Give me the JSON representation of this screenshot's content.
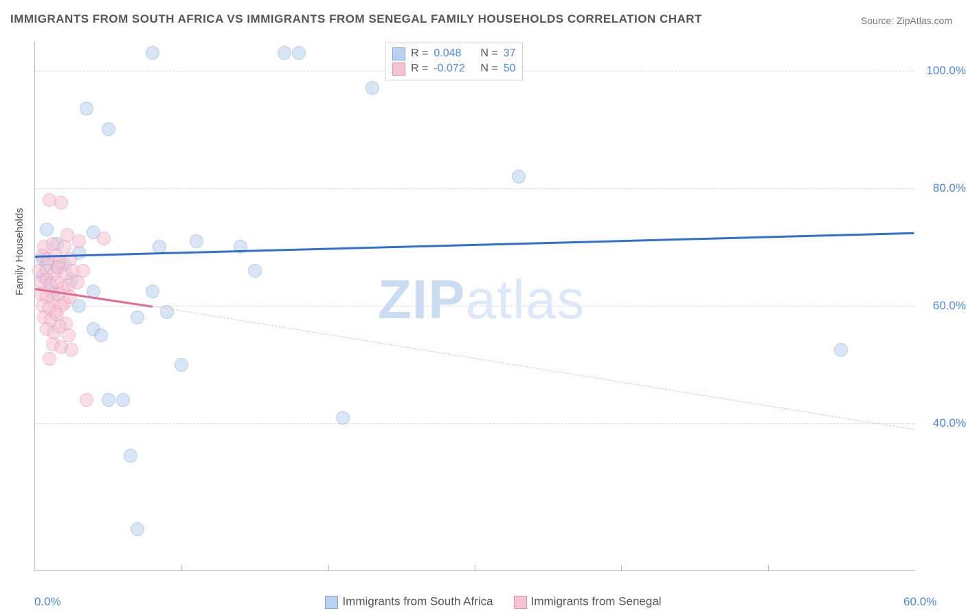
{
  "title": "IMMIGRANTS FROM SOUTH AFRICA VS IMMIGRANTS FROM SENEGAL FAMILY HOUSEHOLDS CORRELATION CHART",
  "source": "Source: ZipAtlas.com",
  "watermark_bold": "ZIP",
  "watermark_light": "atlas",
  "ylabel": "Family Households",
  "chart": {
    "type": "scatter",
    "background_color": "#ffffff",
    "grid_color": "#d8d8d8",
    "border_color": "#bbbbbb",
    "xlim": [
      0,
      60
    ],
    "ylim": [
      15,
      105
    ],
    "xticks": [
      {
        "v": 0,
        "label": "0.0%"
      },
      {
        "v": 60,
        "label": "60.0%"
      }
    ],
    "xtick_minor": [
      10,
      20,
      30,
      40,
      50
    ],
    "yticks": [
      {
        "v": 40,
        "label": "40.0%"
      },
      {
        "v": 60,
        "label": "60.0%"
      },
      {
        "v": 80,
        "label": "80.0%"
      },
      {
        "v": 100,
        "label": "100.0%"
      }
    ],
    "tick_fontsize": 17,
    "tick_color": "#4a86e8",
    "label_color": "#555555",
    "label_fontsize": 15,
    "marker_size": 18,
    "marker_opacity": 0.55,
    "series": [
      {
        "name": "Immigrants from South Africa",
        "fill": "#b9d1ee",
        "stroke": "#7ca9de",
        "trend_color": "#2f6fd0",
        "trend": {
          "x1": 0,
          "y1": 68.5,
          "x2": 60,
          "y2": 72.5,
          "dashed": false,
          "width": 2.5
        },
        "trend_ext": null,
        "stats": {
          "R_label": "R =",
          "R": "0.048",
          "N_label": "N =",
          "N": "37"
        },
        "points": [
          [
            0.8,
            73
          ],
          [
            4,
            72.5
          ],
          [
            0.5,
            68
          ],
          [
            2,
            67
          ],
          [
            3,
            69
          ],
          [
            1.5,
            66.5
          ],
          [
            8,
            103
          ],
          [
            17,
            103
          ],
          [
            18,
            103
          ],
          [
            3.5,
            93.5
          ],
          [
            5,
            90
          ],
          [
            23,
            97
          ],
          [
            33,
            82
          ],
          [
            4,
            62.5
          ],
          [
            8,
            62.5
          ],
          [
            7,
            58
          ],
          [
            3,
            60
          ],
          [
            4,
            56
          ],
          [
            4.5,
            55
          ],
          [
            10,
            50
          ],
          [
            5,
            44
          ],
          [
            6,
            44
          ],
          [
            6.5,
            34.5
          ],
          [
            7,
            22
          ],
          [
            21,
            41
          ],
          [
            15,
            66
          ],
          [
            8.5,
            70
          ],
          [
            11,
            71
          ],
          [
            14,
            70
          ],
          [
            9,
            59
          ],
          [
            1,
            64
          ],
          [
            1.5,
            70.5
          ],
          [
            0.5,
            65
          ],
          [
            1.2,
            62
          ],
          [
            0.8,
            67
          ],
          [
            2.5,
            64.5
          ],
          [
            55,
            52.5
          ]
        ]
      },
      {
        "name": "Immigrants from Senegal",
        "fill": "#f5c3d3",
        "stroke": "#e88fae",
        "trend_color": "#e36a93",
        "trend": {
          "x1": 0,
          "y1": 63,
          "x2": 8,
          "y2": 60,
          "dashed": false,
          "width": 2.5
        },
        "trend_ext": {
          "x1": 8,
          "y1": 60,
          "x2": 60,
          "y2": 39,
          "dashed": true,
          "width": 1,
          "color": "#f0b5c8"
        },
        "stats": {
          "R_label": "R =",
          "R": "-0.072",
          "N_label": "N =",
          "N": "50"
        },
        "points": [
          [
            1.0,
            78
          ],
          [
            1.8,
            77.5
          ],
          [
            0.6,
            70
          ],
          [
            1.2,
            70.5
          ],
          [
            2.0,
            70
          ],
          [
            2.2,
            72
          ],
          [
            3.0,
            71
          ],
          [
            4.7,
            71.5
          ],
          [
            0.5,
            68.5
          ],
          [
            0.9,
            68
          ],
          [
            1.4,
            68.5
          ],
          [
            1.7,
            67.5
          ],
          [
            2.4,
            68
          ],
          [
            0.3,
            66
          ],
          [
            0.8,
            66
          ],
          [
            1.3,
            65.5
          ],
          [
            1.6,
            66.5
          ],
          [
            2.1,
            65.5
          ],
          [
            2.6,
            66
          ],
          [
            3.3,
            66
          ],
          [
            0.4,
            64
          ],
          [
            0.8,
            64.5
          ],
          [
            1.1,
            63.5
          ],
          [
            1.5,
            64
          ],
          [
            1.9,
            63
          ],
          [
            2.3,
            63.5
          ],
          [
            2.9,
            64
          ],
          [
            0.4,
            62
          ],
          [
            0.8,
            61.5
          ],
          [
            1.2,
            61
          ],
          [
            1.6,
            62
          ],
          [
            2.0,
            60.5
          ],
          [
            2.4,
            61.5
          ],
          [
            0.5,
            60
          ],
          [
            1.0,
            59.5
          ],
          [
            1.4,
            59
          ],
          [
            1.8,
            60
          ],
          [
            0.6,
            58
          ],
          [
            1.1,
            57.5
          ],
          [
            1.5,
            58.5
          ],
          [
            2.1,
            57
          ],
          [
            0.8,
            56
          ],
          [
            1.3,
            55.5
          ],
          [
            1.7,
            56.5
          ],
          [
            2.3,
            55
          ],
          [
            1.2,
            53.5
          ],
          [
            1.8,
            53
          ],
          [
            2.5,
            52.5
          ],
          [
            1.0,
            51
          ],
          [
            3.5,
            44
          ]
        ]
      }
    ],
    "legend_top": {
      "border_color": "#cccccc",
      "text_color": "#555555",
      "value_color": "#4a86e8"
    },
    "legend_bottom_color": "#555555"
  }
}
